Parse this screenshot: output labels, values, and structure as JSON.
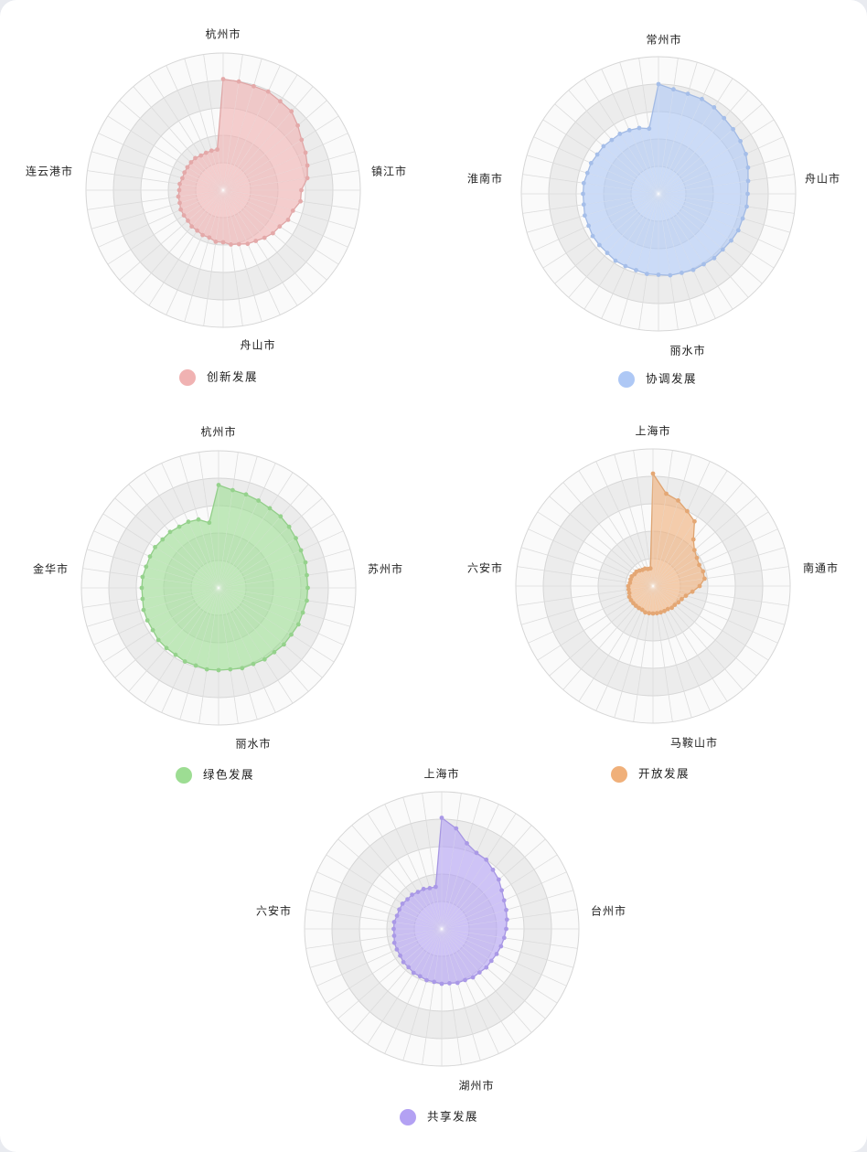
{
  "chart_data": [
    {
      "type": "radar",
      "series_name": "创新发展",
      "legend": "创新发展",
      "color": "#f0b2b2",
      "scale_max": 1.0,
      "ring_steps": [
        0.2,
        0.4,
        0.6,
        0.8,
        1.0
      ],
      "spoke_count": 44,
      "axis_labels": [
        "杭州市",
        "镇江市",
        "舟山市",
        "连云港市"
      ],
      "values": [
        0.81,
        0.8,
        0.79,
        0.79,
        0.77,
        0.76,
        0.72,
        0.68,
        0.66,
        0.64,
        0.62,
        0.57,
        0.57,
        0.53,
        0.52,
        0.49,
        0.48,
        0.46,
        0.44,
        0.43,
        0.41,
        0.4,
        0.38,
        0.38,
        0.36,
        0.36,
        0.35,
        0.35,
        0.34,
        0.34,
        0.34,
        0.33,
        0.33,
        0.32,
        0.32,
        0.31,
        0.31,
        0.31,
        0.31,
        0.31,
        0.3,
        0.3,
        0.3,
        0.3
      ]
    },
    {
      "type": "radar",
      "series_name": "协调发展",
      "legend": "协调发展",
      "color": "#aec8f5",
      "scale_max": 1.0,
      "ring_steps": [
        0.2,
        0.4,
        0.6,
        0.8,
        1.0
      ],
      "spoke_count": 44,
      "axis_labels": [
        "常州市",
        "舟山市",
        "丽水市",
        "淮南市"
      ],
      "values": [
        0.8,
        0.77,
        0.76,
        0.76,
        0.75,
        0.73,
        0.72,
        0.71,
        0.7,
        0.68,
        0.66,
        0.65,
        0.65,
        0.64,
        0.64,
        0.63,
        0.62,
        0.62,
        0.61,
        0.61,
        0.6,
        0.6,
        0.59,
        0.59,
        0.58,
        0.58,
        0.58,
        0.57,
        0.57,
        0.57,
        0.56,
        0.56,
        0.55,
        0.55,
        0.55,
        0.54,
        0.54,
        0.53,
        0.53,
        0.52,
        0.52,
        0.51,
        0.5,
        0.48
      ]
    },
    {
      "type": "radar",
      "series_name": "绿色发展",
      "legend": "绿色发展",
      "color": "#9ddd93",
      "scale_max": 1.0,
      "ring_steps": [
        0.2,
        0.4,
        0.6,
        0.8,
        1.0
      ],
      "spoke_count": 44,
      "axis_labels": [
        "杭州市",
        "苏州市",
        "丽水市",
        "金华市"
      ],
      "values": [
        0.75,
        0.72,
        0.71,
        0.7,
        0.69,
        0.69,
        0.68,
        0.67,
        0.66,
        0.66,
        0.65,
        0.65,
        0.65,
        0.64,
        0.64,
        0.63,
        0.63,
        0.62,
        0.62,
        0.61,
        0.61,
        0.6,
        0.6,
        0.6,
        0.59,
        0.59,
        0.58,
        0.58,
        0.58,
        0.57,
        0.57,
        0.57,
        0.56,
        0.56,
        0.56,
        0.55,
        0.55,
        0.55,
        0.54,
        0.54,
        0.53,
        0.53,
        0.52,
        0.48
      ]
    },
    {
      "type": "radar",
      "series_name": "开放发展",
      "legend": "开放发展",
      "color": "#f0b07a",
      "scale_max": 1.0,
      "ring_steps": [
        0.2,
        0.4,
        0.6,
        0.8,
        1.0
      ],
      "spoke_count": 44,
      "axis_labels": [
        "上海市",
        "南通市",
        "马鞍山市",
        "六安市"
      ],
      "values": [
        0.82,
        0.68,
        0.65,
        0.6,
        0.56,
        0.45,
        0.4,
        0.38,
        0.37,
        0.38,
        0.38,
        0.34,
        0.29,
        0.25,
        0.23,
        0.22,
        0.21,
        0.21,
        0.2,
        0.2,
        0.2,
        0.2,
        0.2,
        0.2,
        0.2,
        0.19,
        0.19,
        0.19,
        0.19,
        0.19,
        0.19,
        0.18,
        0.18,
        0.18,
        0.17,
        0.17,
        0.17,
        0.16,
        0.16,
        0.15,
        0.14,
        0.14,
        0.13,
        0.13
      ]
    },
    {
      "type": "radar",
      "series_name": "共享发展",
      "legend": "共享发展",
      "color": "#b3a1f3",
      "scale_max": 1.0,
      "ring_steps": [
        0.2,
        0.4,
        0.6,
        0.8,
        1.0
      ],
      "spoke_count": 44,
      "axis_labels": [
        "上海市",
        "台州市",
        "湖州市",
        "六安市"
      ],
      "values": [
        0.81,
        0.74,
        0.65,
        0.61,
        0.6,
        0.57,
        0.55,
        0.52,
        0.5,
        0.49,
        0.48,
        0.47,
        0.46,
        0.45,
        0.44,
        0.43,
        0.43,
        0.42,
        0.42,
        0.41,
        0.41,
        0.4,
        0.4,
        0.39,
        0.39,
        0.38,
        0.38,
        0.37,
        0.37,
        0.36,
        0.36,
        0.36,
        0.35,
        0.35,
        0.35,
        0.34,
        0.34,
        0.34,
        0.33,
        0.33,
        0.32,
        0.32,
        0.31,
        0.31
      ]
    }
  ]
}
